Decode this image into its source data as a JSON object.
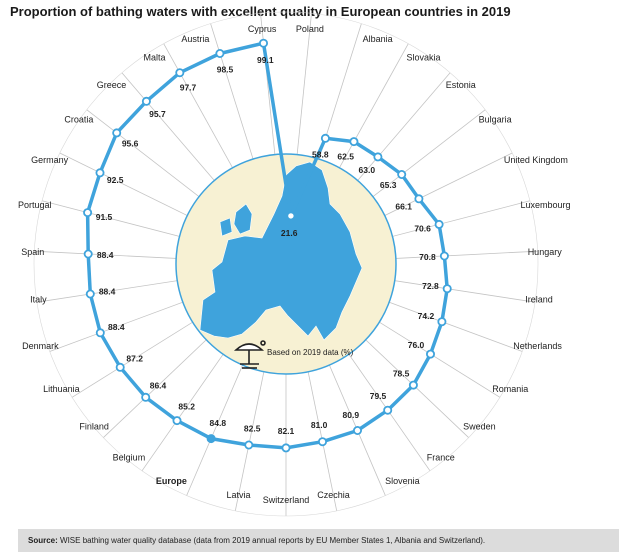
{
  "chart_data": {
    "type": "radar",
    "title": "Proportion of bathing waters with excellent quality in European countries in 2019",
    "unit": "%",
    "center_note": "Based on 2019 data (%)",
    "rlim": [
      0,
      100
    ],
    "highlight": "Europe",
    "categories": [
      "Poland",
      "Albania",
      "Slovakia",
      "Estonia",
      "Bulgaria",
      "United Kingdom",
      "Luxembourg",
      "Hungary",
      "Ireland",
      "Netherlands",
      "Romania",
      "Sweden",
      "France",
      "Slovenia",
      "Czechia",
      "Switzerland",
      "Latvia",
      "Europe",
      "Belgium",
      "Finland",
      "Lithuania",
      "Denmark",
      "Italy",
      "Spain",
      "Portugal",
      "Germany",
      "Croatia",
      "Greece",
      "Malta",
      "Austria",
      "Cyprus"
    ],
    "values": [
      21.6,
      58.8,
      62.5,
      63.0,
      65.3,
      66.1,
      70.6,
      70.8,
      72.8,
      74.2,
      76.0,
      78.5,
      79.5,
      80.9,
      81.0,
      82.1,
      82.5,
      84.8,
      85.2,
      86.4,
      87.2,
      88.4,
      88.4,
      88.4,
      91.5,
      92.5,
      95.6,
      95.7,
      97.7,
      98.5,
      99.1
    ],
    "value_labels": [
      "21.6",
      "58.8",
      "62.5",
      "63.0",
      "65.3",
      "66.1",
      "70.6",
      "70.8",
      "72.8",
      "74.2",
      "76.0",
      "78.5",
      "79.5",
      "80.9",
      "81.0",
      "82.1",
      "82.5",
      "84.8",
      "85.2",
      "86.4",
      "87.2",
      "88.4",
      "88.4",
      "88.4",
      "91.5",
      "92.5",
      "95.6",
      "95.7",
      "97.7",
      "98.5",
      "99.1"
    ],
    "colors": {
      "line": "#3fa3dc",
      "map_land": "#3fa3dc",
      "map_bg": "#f7f1d3",
      "axis": "#c4c4c4"
    }
  },
  "footer": {
    "source_label": "Source:",
    "source_text": "WISE bathing water quality database (data from 2019 annual reports by EU Member States 1, Albania and Switzerland)."
  },
  "icons": {
    "center": "beach-umbrella-icon"
  }
}
